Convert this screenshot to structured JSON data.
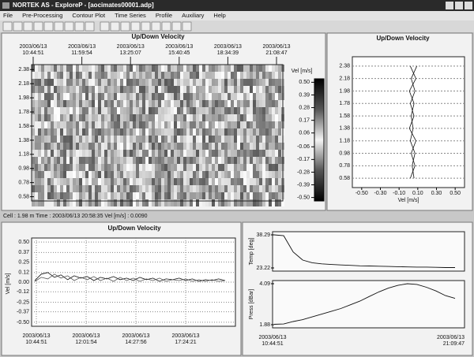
{
  "window": {
    "title": "NORTEK AS - ExploreP - [aocimates00001.adp]"
  },
  "menu": [
    "File",
    "Pre-Processing",
    "Contour Plot",
    "Time Series",
    "Profile",
    "Auxiliary",
    "Help"
  ],
  "contour": {
    "title": "Up/Down Velocity",
    "time_labels": [
      [
        "2003/06/13",
        "10:44:51"
      ],
      [
        "2003/06/13",
        "11:59:54"
      ],
      [
        "2003/06/13",
        "13:25:07"
      ],
      [
        "2003/06/13",
        "15:40:45"
      ],
      [
        "2003/06/13",
        "18:34:39"
      ],
      [
        "2003/06/13",
        "21:08:47"
      ]
    ],
    "ylim": [
      0.52,
      2.45
    ],
    "yticks": [
      2.38,
      2.18,
      1.98,
      1.78,
      1.58,
      1.38,
      1.18,
      0.98,
      0.78,
      0.58
    ],
    "colorbar_label": "Vel [m/s]",
    "clim": [
      -0.53,
      0.53
    ],
    "cticks": [
      {
        "value": 0.5,
        "label": "0.50"
      },
      0.39,
      0.28,
      0.17,
      0.06,
      -0.06,
      -0.17,
      -0.28,
      -0.39,
      {
        "value": -0.5,
        "label": "-0.50"
      }
    ]
  },
  "status": {
    "text": "Cell : 1.98 m   Time : 2003/06/13 20:58:35   Vel [m/s] : 0.0090"
  },
  "profile": {
    "title": "Up/Down Velocity",
    "x_label": "Vel [m/s]",
    "xlim": [
      -0.6,
      0.6
    ],
    "xticks": [
      {
        "value": -0.5,
        "label": "-0.50"
      },
      {
        "value": -0.3,
        "label": "-0.30"
      },
      {
        "value": -0.1,
        "label": "-0.10"
      },
      {
        "value": 0.1,
        "label": "0.10"
      },
      {
        "value": 0.3,
        "label": "0.30"
      },
      {
        "value": 0.5,
        "label": "0.50"
      }
    ],
    "ylim": [
      0.43,
      2.53
    ],
    "yticks": [
      2.38,
      2.18,
      1.98,
      1.78,
      1.58,
      1.38,
      1.18,
      0.98,
      0.78,
      0.58
    ],
    "depths": [
      2.38,
      2.18,
      1.98,
      1.78,
      1.58,
      1.38,
      1.18,
      0.98,
      0.78,
      0.58
    ],
    "profiles": [
      [
        0.02,
        0.08,
        0.01,
        0.06,
        0.03,
        0.05,
        0.02,
        0.07,
        0.04,
        0.06
      ],
      [
        0.09,
        0.03,
        0.07,
        0.02,
        0.06,
        0.01,
        0.08,
        0.03,
        0.07,
        0.02
      ]
    ]
  },
  "velocity": {
    "title": "Up/Down Velocity",
    "y_label": "Vel [m/s]",
    "ylim": [
      -0.55,
      0.55
    ],
    "yticks": [
      {
        "value": 0.5,
        "label": "0.50"
      },
      0.37,
      0.25,
      0.12,
      {
        "value": 0,
        "label": "0.00"
      },
      -0.12,
      -0.25,
      -0.37,
      {
        "value": -0.5,
        "label": "-0.50"
      }
    ],
    "time_labels": [
      [
        "2003/06/13",
        "10:44:51"
      ],
      [
        "2003/06/13",
        "12:01:54"
      ],
      [
        "2003/06/13",
        "14:27:56"
      ],
      [
        "2003/06/13",
        "17:24:21"
      ]
    ],
    "series": [
      [
        0.02,
        0.1,
        0.12,
        0.06,
        0.09,
        0.03,
        0.08,
        0.05,
        0.07,
        0.02,
        0.06,
        0.04,
        0.07,
        0.03,
        0.05,
        0.02,
        0.06,
        0.03,
        0.05,
        0.01,
        0.04,
        0.03,
        0.05,
        0.02,
        0.04,
        0.01,
        0.03,
        0.02,
        0.04,
        0.02
      ],
      [
        0.01,
        0.06,
        0.04,
        0.1,
        0.05,
        0.08,
        0.02,
        0.06,
        0.03,
        0.07,
        0.02,
        0.05,
        0.01,
        0.06,
        0.02,
        0.05,
        0.01,
        0.04,
        0.02,
        0.05,
        0.01,
        0.03,
        0.02,
        0.04,
        0.01,
        0.03,
        0.01,
        0.03,
        0.01,
        0.02
      ]
    ]
  },
  "aux": {
    "time_labels": [
      [
        "2003/06/13",
        "10:44:51"
      ],
      [
        "2003/06/13",
        "21:09:47"
      ]
    ],
    "temp": {
      "label": "Temp [deg]",
      "ylim": [
        23.22,
        38.29
      ],
      "yticks": [
        38.29,
        23.22
      ],
      "values": [
        38.29,
        37.9,
        30.5,
        26.8,
        25.6,
        25.1,
        24.8,
        24.6,
        24.4,
        24.2,
        24.1,
        24.0,
        23.9,
        23.8,
        23.7,
        23.6,
        23.6,
        23.5,
        23.4,
        23.4
      ]
    },
    "press": {
      "label": "Press [dBar]",
      "ylim": [
        1.88,
        4.09
      ],
      "yticks": [
        4.09,
        1.88
      ],
      "values": [
        1.9,
        1.92,
        2.05,
        2.15,
        2.3,
        2.45,
        2.6,
        2.75,
        2.95,
        3.15,
        3.4,
        3.65,
        3.85,
        4.0,
        4.09,
        4.05,
        3.9,
        3.7,
        3.45,
        3.3
      ]
    }
  }
}
